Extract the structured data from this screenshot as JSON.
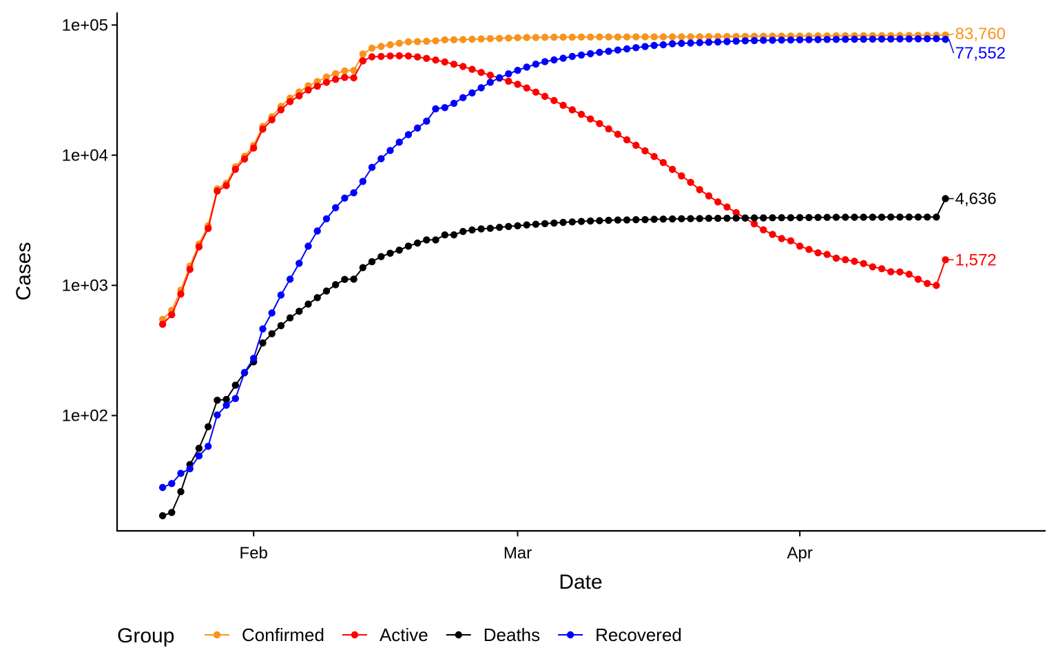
{
  "chart_data": {
    "type": "line",
    "xlabel": "Date",
    "ylabel": "Cases",
    "y_scale": "log",
    "ylim": [
      13,
      125000
    ],
    "xlim": [
      "2020-01-17",
      "2020-04-28"
    ],
    "x_ticks": [
      {
        "date": "2020-02-01",
        "label": "Feb"
      },
      {
        "date": "2020-03-01",
        "label": "Mar"
      },
      {
        "date": "2020-04-01",
        "label": "Apr"
      }
    ],
    "y_ticks": [
      {
        "value": 100,
        "label": "1e+02"
      },
      {
        "value": 1000,
        "label": "1e+03"
      },
      {
        "value": 10000,
        "label": "1e+04"
      },
      {
        "value": 100000,
        "label": "1e+05"
      }
    ],
    "grid": false,
    "legend": {
      "title": "Group",
      "position": "bottom"
    },
    "x": [
      "2020-01-22",
      "2020-01-23",
      "2020-01-24",
      "2020-01-25",
      "2020-01-26",
      "2020-01-27",
      "2020-01-28",
      "2020-01-29",
      "2020-01-30",
      "2020-01-31",
      "2020-02-01",
      "2020-02-02",
      "2020-02-03",
      "2020-02-04",
      "2020-02-05",
      "2020-02-06",
      "2020-02-07",
      "2020-02-08",
      "2020-02-09",
      "2020-02-10",
      "2020-02-11",
      "2020-02-12",
      "2020-02-13",
      "2020-02-14",
      "2020-02-15",
      "2020-02-16",
      "2020-02-17",
      "2020-02-18",
      "2020-02-19",
      "2020-02-20",
      "2020-02-21",
      "2020-02-22",
      "2020-02-23",
      "2020-02-24",
      "2020-02-25",
      "2020-02-26",
      "2020-02-27",
      "2020-02-28",
      "2020-02-29",
      "2020-03-01",
      "2020-03-02",
      "2020-03-03",
      "2020-03-04",
      "2020-03-05",
      "2020-03-06",
      "2020-03-07",
      "2020-03-08",
      "2020-03-09",
      "2020-03-10",
      "2020-03-11",
      "2020-03-12",
      "2020-03-13",
      "2020-03-14",
      "2020-03-15",
      "2020-03-16",
      "2020-03-17",
      "2020-03-18",
      "2020-03-19",
      "2020-03-20",
      "2020-03-21",
      "2020-03-22",
      "2020-03-23",
      "2020-03-24",
      "2020-03-25",
      "2020-03-26",
      "2020-03-27",
      "2020-03-28",
      "2020-03-29",
      "2020-03-30",
      "2020-03-31",
      "2020-04-01",
      "2020-04-02",
      "2020-04-03",
      "2020-04-04",
      "2020-04-05",
      "2020-04-06",
      "2020-04-07",
      "2020-04-08",
      "2020-04-09",
      "2020-04-10",
      "2020-04-11",
      "2020-04-12",
      "2020-04-13",
      "2020-04-14",
      "2020-04-15",
      "2020-04-16",
      "2020-04-17"
    ],
    "series": [
      {
        "name": "Confirmed",
        "color": "#f7941d",
        "end_label": "83,760",
        "values": [
          548,
          643,
          920,
          1406,
          2075,
          2877,
          5509,
          6087,
          8141,
          9802,
          11891,
          16630,
          19716,
          23707,
          27440,
          30587,
          34110,
          36814,
          39829,
          42354,
          44386,
          44759,
          59895,
          66358,
          68413,
          70513,
          72434,
          74211,
          74619,
          75077,
          75550,
          77001,
          77022,
          77241,
          77754,
          78166,
          78600,
          78928,
          79356,
          79932,
          80136,
          80261,
          80386,
          80537,
          80690,
          80770,
          80823,
          80860,
          80887,
          80921,
          80932,
          80945,
          80977,
          81003,
          81033,
          81058,
          81102,
          81156,
          81250,
          81305,
          81435,
          81498,
          81591,
          81661,
          81782,
          81897,
          81999,
          82122,
          82198,
          82279,
          82361,
          82432,
          82511,
          82543,
          82602,
          82665,
          82718,
          82809,
          82883,
          82941,
          83014,
          83134,
          83213,
          83306,
          83356,
          83403,
          83760
        ]
      },
      {
        "name": "Active",
        "color": "#ff0000",
        "end_label": "1,572",
        "values": [
          503,
          595,
          858,
          1325,
          1977,
          2737,
          5298,
          5833,
          7786,
          9339,
          11327,
          15857,
          18694,
          22331,
          25777,
          28570,
          31650,
          33868,
          36339,
          38205,
          39574,
          39291,
          53018,
          56988,
          57330,
          57823,
          58022,
          57837,
          56853,
          55390,
          53820,
          51984,
          49938,
          47964,
          45669,
          43241,
          41188,
          39012,
          37046,
          35046,
          32831,
          30520,
          28289,
          26290,
          24183,
          22317,
          20593,
          18973,
          17496,
          15914,
          14473,
          13115,
          11909,
          10797,
          9773,
          8775,
          7780,
          6941,
          6184,
          5433,
          4867,
          4371,
          3996,
          3620,
          3286,
          2963,
          2670,
          2464,
          2289,
          2196,
          2004,
          1888,
          1778,
          1726,
          1618,
          1573,
          1530,
          1470,
          1386,
          1342,
          1271,
          1269,
          1217,
          1114,
          1034,
          999,
          1572
        ]
      },
      {
        "name": "Deaths",
        "color": "#000000",
        "end_label": "4,636",
        "values": [
          17,
          18,
          26,
          42,
          56,
          82,
          131,
          133,
          171,
          213,
          259,
          361,
          425,
          490,
          562,
          632,
          717,
          804,
          904,
          1011,
          1111,
          1116,
          1368,
          1520,
          1662,
          1765,
          1863,
          2002,
          2114,
          2236,
          2236,
          2441,
          2443,
          2593,
          2663,
          2715,
          2744,
          2788,
          2835,
          2870,
          2912,
          2945,
          2981,
          3013,
          3045,
          3073,
          3099,
          3123,
          3140,
          3162,
          3173,
          3180,
          3193,
          3203,
          3217,
          3230,
          3241,
          3249,
          3253,
          3259,
          3274,
          3274,
          3281,
          3285,
          3291,
          3296,
          3299,
          3304,
          3308,
          3309,
          3316,
          3322,
          3326,
          3330,
          3333,
          3335,
          3335,
          3337,
          3339,
          3340,
          3343,
          3343,
          3345,
          3345,
          3346,
          3346,
          4636
        ]
      },
      {
        "name": "Recovered",
        "color": "#0000ff",
        "end_label": "77,552",
        "values": [
          28,
          30,
          36,
          39,
          49,
          58,
          101,
          120,
          135,
          214,
          275,
          463,
          614,
          843,
          1115,
          1477,
          2001,
          2616,
          3244,
          3946,
          4683,
          5150,
          6295,
          8058,
          9395,
          10865,
          12583,
          14376,
          16155,
          18264,
          22699,
          23187,
          25015,
          27676,
          30084,
          32930,
          36329,
          39320,
          42162,
          44854,
          47450,
          50001,
          52292,
          53944,
          55539,
          57388,
          58804,
          60181,
          61644,
          62901,
          64196,
          65660,
          67017,
          68310,
          69755,
          70535,
          71740,
          72244,
          72703,
          73159,
          73650,
          74051,
          74600,
          75100,
          75582,
          75923,
          76206,
          76405,
          76565,
          76760,
          76952,
          77207,
          77310,
          77410,
          77567,
          77679,
          77766,
          77877,
          77956,
          77998,
          78055,
          78107,
          78190,
          78315,
          78416,
          78466,
          77552
        ]
      }
    ]
  }
}
